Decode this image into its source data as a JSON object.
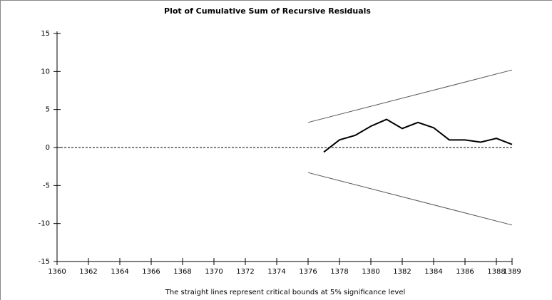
{
  "chart_data": {
    "type": "line",
    "title": "Plot of Cumulative Sum of Recursive Residuals",
    "note": "The straight lines represent critical bounds at 5% significance level",
    "xlim": [
      1360,
      1389
    ],
    "xticks": [
      1360,
      1362,
      1364,
      1366,
      1368,
      1370,
      1372,
      1374,
      1376,
      1378,
      1380,
      1382,
      1384,
      1386,
      1388,
      1389
    ],
    "ylim": [
      -15,
      15
    ],
    "yticks": [
      -15,
      -10,
      -5,
      0,
      5,
      10,
      15
    ],
    "series": [
      {
        "color": "#000000",
        "x": [
          1377,
          1378,
          1379,
          1380,
          1381,
          1382,
          1383,
          1384,
          1385,
          1386,
          1387,
          1388,
          1389
        ],
        "values": [
          -0.6,
          1.0,
          1.6,
          2.8,
          3.7,
          2.5,
          3.3,
          2.6,
          1.0,
          1.0,
          0.7,
          1.2,
          0.4
        ]
      },
      {
        "color": "#555555",
        "x": [
          1376,
          1389
        ],
        "values": [
          3.3,
          10.2
        ]
      },
      {
        "color": "#555555",
        "x": [
          1376,
          1389
        ],
        "values": [
          -3.3,
          -10.2
        ]
      }
    ]
  }
}
